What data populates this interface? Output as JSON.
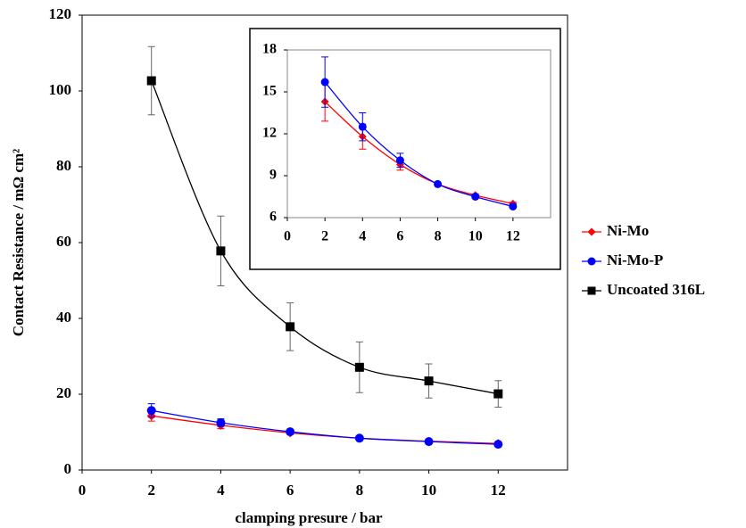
{
  "chart_data": [
    {
      "type": "line",
      "xlabel": "clamping presure / bar",
      "ylabel": "Contact Resistance / mΩ cm²",
      "xlim": [
        0,
        14
      ],
      "xticks": [
        0,
        2,
        4,
        6,
        8,
        10,
        12
      ],
      "ylim": [
        0,
        120
      ],
      "yticks": [
        0,
        20,
        40,
        60,
        80,
        100,
        120
      ],
      "x": [
        2,
        4,
        6,
        8,
        10,
        12
      ],
      "legend": "right",
      "series": [
        {
          "name": "Ni-Mo",
          "color": "#ff0000",
          "marker": "diamond",
          "values": [
            14.3,
            11.8,
            9.8,
            8.4,
            7.6,
            7.0
          ],
          "error": [
            1.4,
            0.9,
            0.4,
            0.1,
            0.1,
            0.1
          ]
        },
        {
          "name": "Ni-Mo-P",
          "color": "#0000ff",
          "marker": "circle",
          "values": [
            15.7,
            12.5,
            10.1,
            8.4,
            7.5,
            6.8
          ],
          "error": [
            1.8,
            1.0,
            0.5,
            0.1,
            0.1,
            0.1
          ]
        },
        {
          "name": "Uncoated 316L",
          "color": "#000000",
          "marker": "square",
          "values": [
            102.7,
            57.8,
            37.8,
            27.1,
            23.5,
            20.1
          ],
          "error": [
            9.0,
            9.2,
            6.3,
            6.7,
            4.5,
            3.5
          ]
        }
      ]
    },
    {
      "type": "line",
      "xlim": [
        0,
        14
      ],
      "xticks": [
        0,
        2,
        4,
        6,
        8,
        10,
        12
      ],
      "ylim": [
        6,
        18
      ],
      "yticks": [
        6,
        9,
        12,
        15,
        18
      ],
      "x": [
        2,
        4,
        6,
        8,
        10,
        12
      ],
      "series": [
        {
          "name": "Ni-Mo",
          "color": "#ff0000",
          "marker": "diamond",
          "values": [
            14.3,
            11.8,
            9.8,
            8.4,
            7.6,
            7.0
          ],
          "error": [
            1.4,
            0.9,
            0.4,
            0.1,
            0.1,
            0.1
          ]
        },
        {
          "name": "Ni-Mo-P",
          "color": "#0000ff",
          "marker": "circle",
          "values": [
            15.7,
            12.5,
            10.1,
            8.4,
            7.5,
            6.8
          ],
          "error": [
            1.8,
            1.0,
            0.5,
            0.1,
            0.1,
            0.1
          ]
        }
      ]
    }
  ]
}
